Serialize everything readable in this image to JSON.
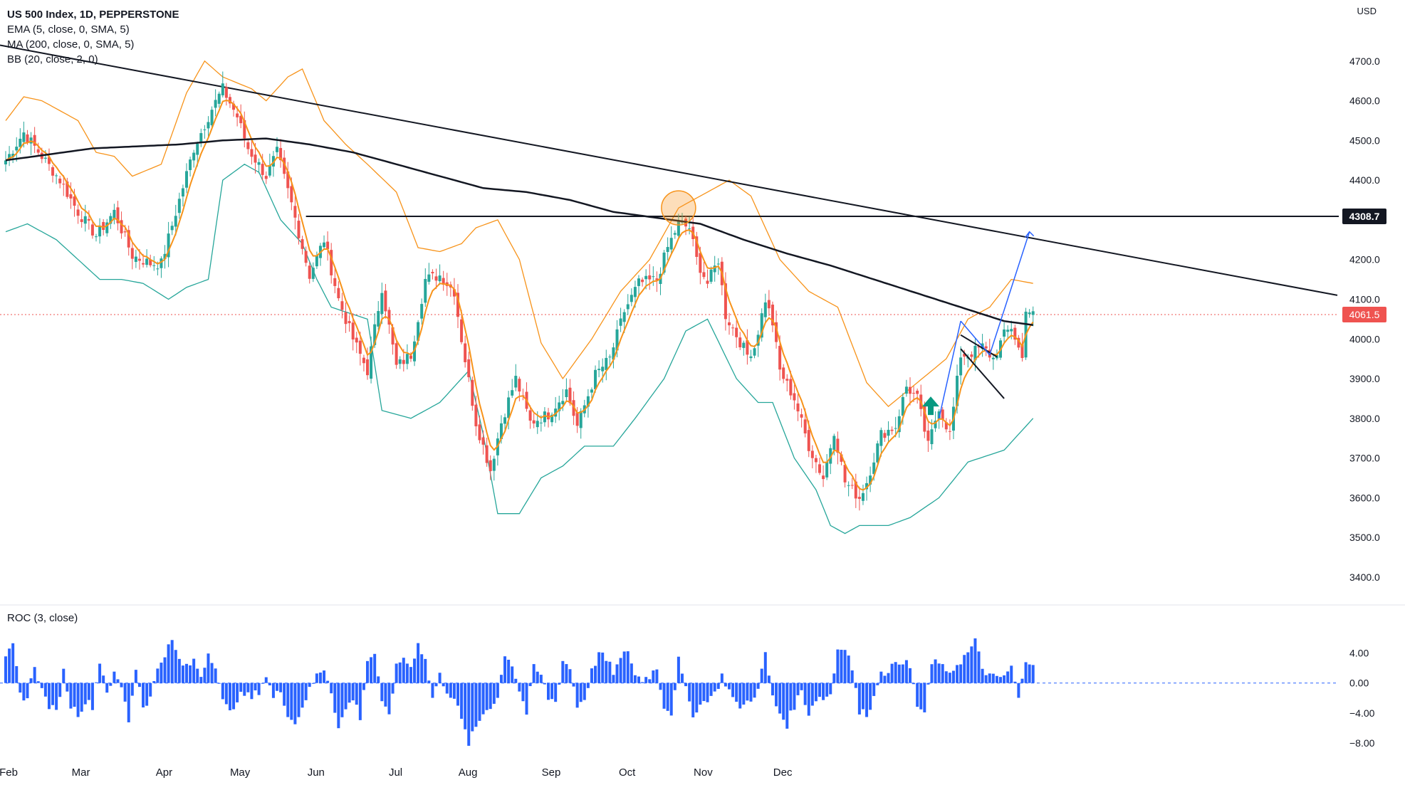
{
  "legend": {
    "symbol": "US 500 Index, 1D, PEPPERSTONE",
    "ema": "EMA (5, close, 0, SMA, 5)",
    "ma": "MA (200, close, 0, SMA, 5)",
    "bb": "BB (20, close, 2, 0)"
  },
  "roc_legend": "ROC (3, close)",
  "currency": "USD",
  "colors": {
    "up": "#26a69a",
    "down": "#ef5350",
    "ema": "#f7931a",
    "ma": "#131722",
    "bb_upper": "#f7931a",
    "bb_lower": "#26a69a",
    "roc": "#2962ff",
    "price_label": "#ef5350",
    "level_label": "#131722",
    "arrow": "#2962ff"
  },
  "chart_data": [
    {
      "type": "candlestick",
      "title": "US 500 Index, 1D, PEPPERSTONE",
      "ylabel": "USD",
      "ylim": [
        3330,
        4800
      ],
      "y_ticks": [
        "4700.0",
        "4600.0",
        "4500.0",
        "4400.0",
        "4300.0",
        "4200.0",
        "4100.0",
        "4000.0",
        "3900.0",
        "3800.0",
        "3700.0",
        "3600.0",
        "3500.0",
        "3400.0"
      ],
      "x_ticks": [
        "Feb",
        "Mar",
        "Apr",
        "May",
        "Jun",
        "Jul",
        "Aug",
        "Sep",
        "Oct",
        "Nov",
        "Dec"
      ],
      "last_price": "4061.5",
      "horizontal_level": "4308.7",
      "bars_per_month": [
        20,
        23,
        21,
        21,
        22,
        20,
        23,
        21,
        21,
        22
      ],
      "close_anchors": [
        [
          0,
          4450
        ],
        [
          5,
          4520
        ],
        [
          10,
          4460
        ],
        [
          15,
          4400
        ],
        [
          20,
          4320
        ],
        [
          25,
          4260
        ],
        [
          30,
          4320
        ],
        [
          35,
          4210
        ],
        [
          40,
          4190
        ],
        [
          43,
          4190
        ],
        [
          48,
          4350
        ],
        [
          52,
          4480
        ],
        [
          57,
          4580
        ],
        [
          60,
          4630
        ],
        [
          64,
          4560
        ],
        [
          67,
          4480
        ],
        [
          72,
          4410
        ],
        [
          75,
          4470
        ],
        [
          79,
          4340
        ],
        [
          84,
          4160
        ],
        [
          88,
          4250
        ],
        [
          92,
          4100
        ],
        [
          96,
          4000
        ],
        [
          100,
          3920
        ],
        [
          104,
          4130
        ],
        [
          108,
          3930
        ],
        [
          112,
          3960
        ],
        [
          116,
          4150
        ],
        [
          120,
          4160
        ],
        [
          124,
          4120
        ],
        [
          126,
          4000
        ],
        [
          130,
          3790
        ],
        [
          134,
          3670
        ],
        [
          137,
          3790
        ],
        [
          141,
          3900
        ],
        [
          145,
          3790
        ],
        [
          150,
          3810
        ],
        [
          155,
          3870
        ],
        [
          158,
          3780
        ],
        [
          163,
          3910
        ],
        [
          167,
          3950
        ],
        [
          171,
          4070
        ],
        [
          175,
          4140
        ],
        [
          180,
          4150
        ],
        [
          183,
          4230
        ],
        [
          186,
          4290
        ],
        [
          189,
          4280
        ],
        [
          191,
          4200
        ],
        [
          194,
          4140
        ],
        [
          197,
          4200
        ],
        [
          199,
          4060
        ],
        [
          202,
          4010
        ],
        [
          205,
          3960
        ],
        [
          207,
          3980
        ],
        [
          210,
          4100
        ],
        [
          212,
          4040
        ],
        [
          214,
          3920
        ],
        [
          218,
          3850
        ],
        [
          222,
          3730
        ],
        [
          226,
          3650
        ],
        [
          229,
          3770
        ],
        [
          232,
          3640
        ],
        [
          236,
          3600
        ],
        [
          238,
          3640
        ],
        [
          242,
          3760
        ],
        [
          246,
          3780
        ],
        [
          249,
          3880
        ],
        [
          252,
          3850
        ],
        [
          255,
          3730
        ],
        [
          258,
          3830
        ],
        [
          261,
          3760
        ],
        [
          264,
          3960
        ],
        [
          266,
          3960
        ],
        [
          270,
          3980
        ],
        [
          273,
          3950
        ],
        [
          276,
          4010
        ],
        [
          278,
          4030
        ],
        [
          281,
          3950
        ],
        [
          282,
          4080
        ],
        [
          284,
          4060
        ]
      ],
      "ma200_anchors": [
        [
          0,
          4450
        ],
        [
          24,
          4480
        ],
        [
          48,
          4490
        ],
        [
          60,
          4500
        ],
        [
          72,
          4505
        ],
        [
          84,
          4490
        ],
        [
          96,
          4470
        ],
        [
          108,
          4440
        ],
        [
          120,
          4410
        ],
        [
          132,
          4380
        ],
        [
          144,
          4370
        ],
        [
          156,
          4350
        ],
        [
          168,
          4320
        ],
        [
          180,
          4305
        ],
        [
          192,
          4290
        ],
        [
          204,
          4250
        ],
        [
          216,
          4215
        ],
        [
          228,
          4185
        ],
        [
          240,
          4150
        ],
        [
          252,
          4115
        ],
        [
          264,
          4080
        ],
        [
          276,
          4045
        ],
        [
          284,
          4035
        ]
      ],
      "bb_upper_anchors": [
        [
          0,
          4550
        ],
        [
          5,
          4610
        ],
        [
          10,
          4600
        ],
        [
          20,
          4550
        ],
        [
          25,
          4470
        ],
        [
          30,
          4460
        ],
        [
          35,
          4410
        ],
        [
          43,
          4440
        ],
        [
          50,
          4620
        ],
        [
          55,
          4700
        ],
        [
          60,
          4660
        ],
        [
          68,
          4630
        ],
        [
          72,
          4600
        ],
        [
          78,
          4660
        ],
        [
          82,
          4680
        ],
        [
          88,
          4550
        ],
        [
          94,
          4490
        ],
        [
          100,
          4440
        ],
        [
          108,
          4370
        ],
        [
          114,
          4230
        ],
        [
          120,
          4220
        ],
        [
          126,
          4240
        ],
        [
          130,
          4280
        ],
        [
          136,
          4300
        ],
        [
          142,
          4200
        ],
        [
          148,
          3990
        ],
        [
          154,
          3900
        ],
        [
          162,
          4000
        ],
        [
          170,
          4120
        ],
        [
          178,
          4200
        ],
        [
          186,
          4330
        ],
        [
          192,
          4360
        ],
        [
          200,
          4400
        ],
        [
          206,
          4360
        ],
        [
          214,
          4200
        ],
        [
          222,
          4120
        ],
        [
          230,
          4080
        ],
        [
          238,
          3890
        ],
        [
          244,
          3830
        ],
        [
          252,
          3890
        ],
        [
          260,
          3950
        ],
        [
          266,
          4050
        ],
        [
          272,
          4080
        ],
        [
          278,
          4150
        ],
        [
          284,
          4140
        ]
      ],
      "bb_lower_anchors": [
        [
          0,
          4270
        ],
        [
          6,
          4290
        ],
        [
          14,
          4250
        ],
        [
          20,
          4200
        ],
        [
          26,
          4150
        ],
        [
          32,
          4150
        ],
        [
          38,
          4140
        ],
        [
          45,
          4100
        ],
        [
          50,
          4130
        ],
        [
          56,
          4150
        ],
        [
          60,
          4400
        ],
        [
          66,
          4440
        ],
        [
          70,
          4420
        ],
        [
          76,
          4300
        ],
        [
          82,
          4240
        ],
        [
          86,
          4150
        ],
        [
          90,
          4080
        ],
        [
          100,
          4050
        ],
        [
          104,
          3820
        ],
        [
          112,
          3800
        ],
        [
          120,
          3840
        ],
        [
          128,
          3920
        ],
        [
          132,
          3760
        ],
        [
          136,
          3560
        ],
        [
          142,
          3560
        ],
        [
          148,
          3650
        ],
        [
          154,
          3680
        ],
        [
          160,
          3730
        ],
        [
          168,
          3730
        ],
        [
          174,
          3800
        ],
        [
          182,
          3900
        ],
        [
          188,
          4020
        ],
        [
          194,
          4050
        ],
        [
          202,
          3900
        ],
        [
          208,
          3840
        ],
        [
          212,
          3840
        ],
        [
          218,
          3700
        ],
        [
          224,
          3620
        ],
        [
          228,
          3530
        ],
        [
          232,
          3510
        ],
        [
          236,
          3530
        ],
        [
          244,
          3530
        ],
        [
          250,
          3550
        ],
        [
          258,
          3600
        ],
        [
          266,
          3690
        ],
        [
          276,
          3720
        ],
        [
          284,
          3800
        ]
      ]
    },
    {
      "type": "bar",
      "title": "ROC (3, close)",
      "ylim": [
        -9.5,
        8.5
      ],
      "y_ticks": [
        "4.00",
        "0.00",
        "-4.00",
        "-8.00"
      ],
      "value_anchors": [
        [
          0,
          3
        ],
        [
          2,
          5
        ],
        [
          4,
          -1.5
        ],
        [
          6,
          -2
        ],
        [
          8,
          2.5
        ],
        [
          10,
          -1
        ],
        [
          12,
          -3
        ],
        [
          14,
          -4
        ],
        [
          16,
          1.5
        ],
        [
          18,
          -3
        ],
        [
          20,
          -4
        ],
        [
          22,
          -2.5
        ],
        [
          24,
          -3
        ],
        [
          26,
          3
        ],
        [
          28,
          -1
        ],
        [
          30,
          1
        ],
        [
          32,
          -0.5
        ],
        [
          34,
          -5
        ],
        [
          36,
          2
        ],
        [
          38,
          -3
        ],
        [
          40,
          -2
        ],
        [
          42,
          2
        ],
        [
          44,
          4
        ],
        [
          46,
          5.5
        ],
        [
          48,
          3
        ],
        [
          50,
          2
        ],
        [
          52,
          3
        ],
        [
          54,
          1
        ],
        [
          56,
          4
        ],
        [
          58,
          2.5
        ],
        [
          60,
          -2.5
        ],
        [
          62,
          -4
        ],
        [
          64,
          -2
        ],
        [
          66,
          -1.5
        ],
        [
          68,
          -2
        ],
        [
          70,
          -1
        ],
        [
          72,
          1
        ],
        [
          74,
          -2
        ],
        [
          76,
          -1
        ],
        [
          78,
          -4
        ],
        [
          80,
          -5.5
        ],
        [
          82,
          -3
        ],
        [
          84,
          -1
        ],
        [
          86,
          1
        ],
        [
          88,
          2
        ],
        [
          90,
          -1
        ],
        [
          92,
          -6
        ],
        [
          94,
          -3.5
        ],
        [
          96,
          -2
        ],
        [
          98,
          -4.5
        ],
        [
          100,
          3
        ],
        [
          102,
          4
        ],
        [
          104,
          -3
        ],
        [
          106,
          -4
        ],
        [
          108,
          2
        ],
        [
          110,
          3.5
        ],
        [
          112,
          2
        ],
        [
          114,
          5.5
        ],
        [
          116,
          3
        ],
        [
          118,
          -2
        ],
        [
          120,
          1
        ],
        [
          122,
          -1
        ],
        [
          124,
          -2
        ],
        [
          126,
          -5
        ],
        [
          128,
          -8
        ],
        [
          130,
          -6
        ],
        [
          132,
          -4
        ],
        [
          134,
          -3
        ],
        [
          136,
          -2
        ],
        [
          138,
          4
        ],
        [
          140,
          2.5
        ],
        [
          142,
          -1
        ],
        [
          144,
          -4
        ],
        [
          146,
          2
        ],
        [
          148,
          1
        ],
        [
          150,
          -2
        ],
        [
          152,
          -2.5
        ],
        [
          154,
          3
        ],
        [
          156,
          2
        ],
        [
          158,
          -3
        ],
        [
          160,
          -2
        ],
        [
          162,
          1.5
        ],
        [
          164,
          4
        ],
        [
          166,
          3
        ],
        [
          168,
          1.5
        ],
        [
          170,
          3
        ],
        [
          172,
          4.5
        ],
        [
          174,
          1
        ],
        [
          176,
          0.5
        ],
        [
          178,
          1
        ],
        [
          180,
          2
        ],
        [
          182,
          -3
        ],
        [
          184,
          -4
        ],
        [
          186,
          3
        ],
        [
          188,
          -1
        ],
        [
          190,
          -4
        ],
        [
          192,
          -3
        ],
        [
          194,
          -2
        ],
        [
          196,
          -1.5
        ],
        [
          198,
          1
        ],
        [
          200,
          -1
        ],
        [
          202,
          -3
        ],
        [
          204,
          -3
        ],
        [
          206,
          -2
        ],
        [
          208,
          -1
        ],
        [
          210,
          4
        ],
        [
          212,
          -2
        ],
        [
          214,
          -4
        ],
        [
          216,
          -5.5
        ],
        [
          218,
          -3
        ],
        [
          220,
          -1
        ],
        [
          222,
          -4
        ],
        [
          224,
          -2
        ],
        [
          226,
          -2
        ],
        [
          228,
          -1.5
        ],
        [
          230,
          4.5
        ],
        [
          232,
          5
        ],
        [
          234,
          2
        ],
        [
          236,
          -4
        ],
        [
          238,
          -4
        ],
        [
          240,
          -2
        ],
        [
          242,
          2
        ],
        [
          244,
          1
        ],
        [
          246,
          3
        ],
        [
          248,
          3
        ],
        [
          250,
          2
        ],
        [
          252,
          -3
        ],
        [
          254,
          -4
        ],
        [
          256,
          2.5
        ],
        [
          258,
          3
        ],
        [
          260,
          1
        ],
        [
          262,
          2
        ],
        [
          264,
          3
        ],
        [
          266,
          4
        ],
        [
          268,
          5.5
        ],
        [
          270,
          2
        ],
        [
          272,
          1
        ],
        [
          274,
          0.5
        ],
        [
          276,
          1
        ],
        [
          278,
          2
        ],
        [
          280,
          -2
        ],
        [
          282,
          2.5
        ],
        [
          284,
          3
        ]
      ]
    }
  ]
}
